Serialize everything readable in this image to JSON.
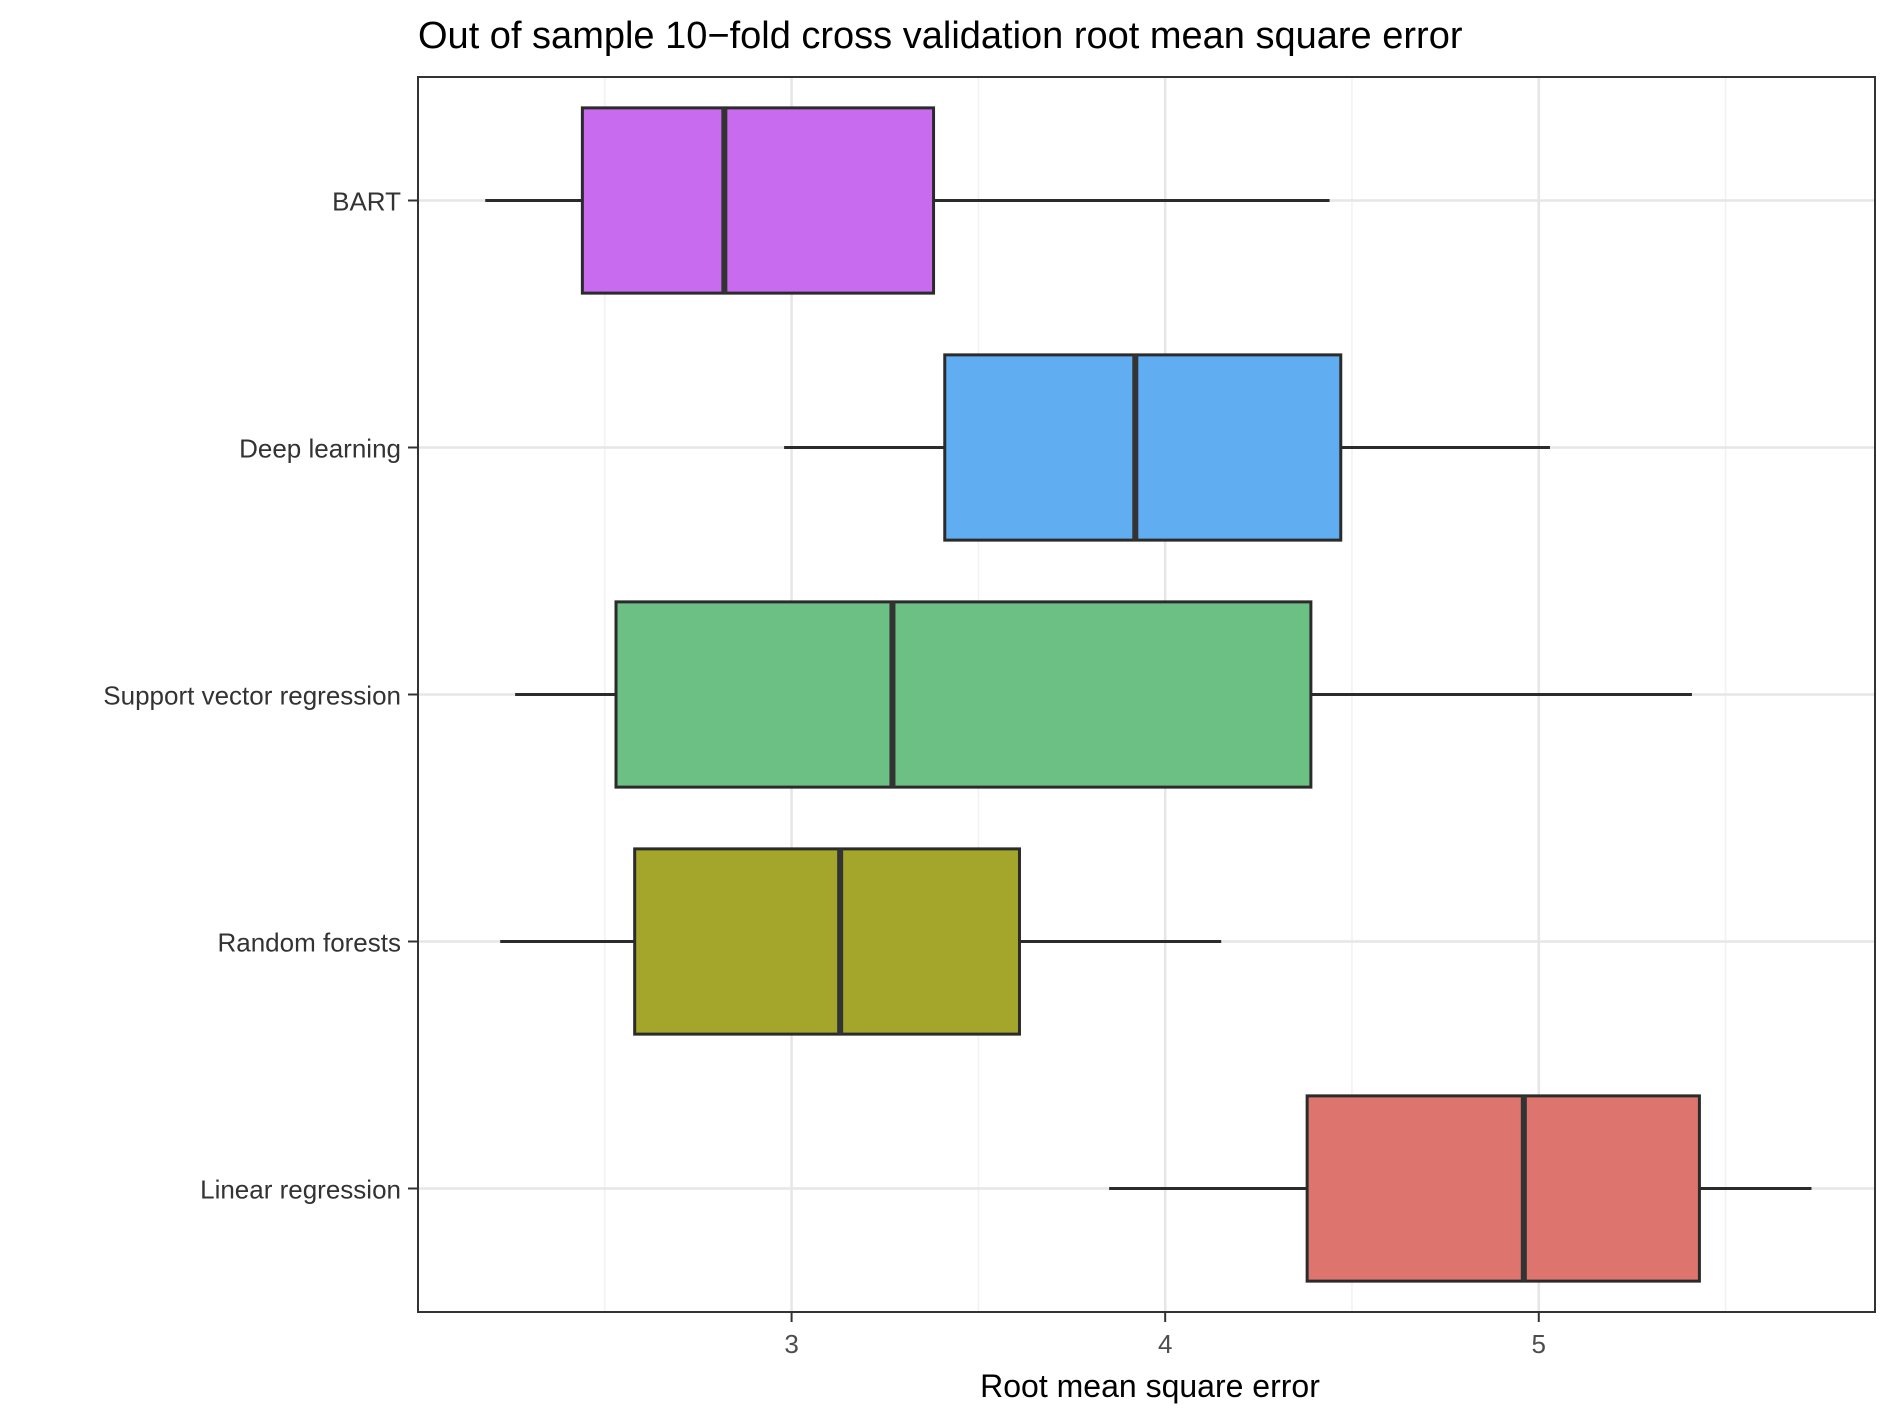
{
  "chart_data": {
    "type": "boxplot",
    "orientation": "horizontal",
    "title": "Out of sample 10−fold cross validation root mean square error",
    "xlabel": "Root mean square error",
    "ylabel": "",
    "xlim": [
      2.0,
      5.9
    ],
    "xticks": [
      3,
      4,
      5
    ],
    "grid": true,
    "legend": "none",
    "categories": [
      "BART",
      "Deep learning",
      "Support vector regression",
      "Random forests",
      "Linear regression"
    ],
    "series": [
      {
        "name": "BART",
        "color": "#C86BEF",
        "min": 2.18,
        "q1": 2.44,
        "median": 2.82,
        "q3": 3.38,
        "max": 4.44
      },
      {
        "name": "Deep learning",
        "color": "#61ADF1",
        "min": 2.98,
        "q1": 3.41,
        "median": 3.92,
        "q3": 4.47,
        "max": 5.03
      },
      {
        "name": "Support vector regression",
        "color": "#6CC084",
        "min": 2.26,
        "q1": 2.53,
        "median": 3.27,
        "q3": 4.39,
        "max": 5.41
      },
      {
        "name": "Random forests",
        "color": "#A3A62A",
        "min": 2.22,
        "q1": 2.58,
        "median": 3.13,
        "q3": 3.61,
        "max": 4.15
      },
      {
        "name": "Linear regression",
        "color": "#DE746E",
        "min": 3.85,
        "q1": 4.38,
        "median": 4.96,
        "q3": 5.43,
        "max": 5.73
      }
    ]
  }
}
